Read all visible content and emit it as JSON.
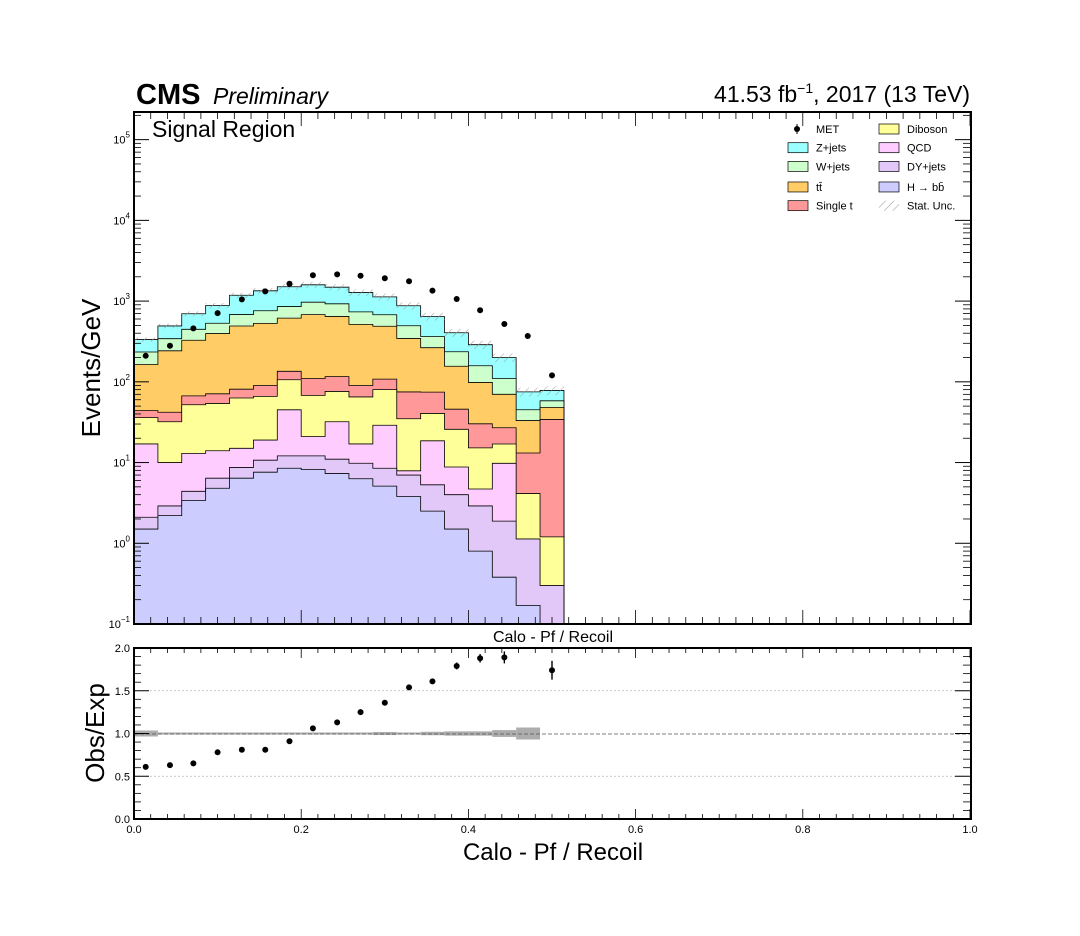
{
  "header": {
    "experiment": "CMS",
    "status": "Preliminary",
    "lumi_value": "41.53 fb",
    "lumi_exp": "−1",
    "lumi_rest": ", 2017 (13 TeV)",
    "region": "Signal Region"
  },
  "colors": {
    "data": "#000000",
    "zjets": "#9bffff",
    "wjets": "#ccffcc",
    "ttbar": "#ffcc66",
    "singlet": "#ff9999",
    "diboson": "#ffff99",
    "qcd": "#ffccff",
    "dyjets": "#e1c8f8",
    "hbb": "#ccccff",
    "unc": "#999999"
  },
  "chart_data": [
    {
      "type": "stacked-histogram",
      "panel": "main",
      "ylabel": "Events/GeV",
      "xlabel": "Calo - Pf / Recoil",
      "yscale": "log",
      "ylim": [
        0.1,
        220000
      ],
      "xlim": [
        0,
        1.0
      ],
      "y_ticks": [
        {
          "value": 0.1,
          "base": "10",
          "exp": "−1"
        },
        {
          "value": 1,
          "base": "10",
          "exp": "0"
        },
        {
          "value": 10,
          "base": "10",
          "exp": "1"
        },
        {
          "value": 100,
          "base": "10",
          "exp": "2"
        },
        {
          "value": 1000,
          "base": "10",
          "exp": "3"
        },
        {
          "value": 10000,
          "base": "10",
          "exp": "4"
        },
        {
          "value": 100000,
          "base": "10",
          "exp": "5"
        }
      ],
      "bin_edges": [
        0.0,
        0.0286,
        0.0571,
        0.0857,
        0.1143,
        0.1429,
        0.1714,
        0.2,
        0.2286,
        0.2571,
        0.2857,
        0.3143,
        0.3429,
        0.3714,
        0.4,
        0.4286,
        0.4571,
        0.4857,
        0.5143
      ],
      "stack_order": [
        "hbb",
        "dyjets",
        "qcd",
        "diboson",
        "singlet",
        "ttbar",
        "wjets",
        "zjets"
      ],
      "series": [
        {
          "key": "hbb",
          "name": "H → bb̄",
          "color_key": "hbb",
          "values": [
            1.5,
            2.2,
            3.4,
            4.8,
            6.4,
            7.6,
            8.5,
            8.2,
            7.3,
            6.3,
            5.1,
            3.8,
            2.5,
            1.5,
            0.8,
            0.38,
            0.17,
            0.1
          ]
        },
        {
          "key": "dyjets",
          "name": "DY+jets",
          "color_key": "dyjets",
          "values": [
            0.6,
            0.7,
            1.0,
            1.6,
            2.3,
            3.1,
            3.6,
            3.9,
            3.7,
            3.5,
            3.4,
            3.2,
            2.8,
            2.5,
            2.1,
            1.5,
            0.96,
            0.2
          ]
        },
        {
          "key": "qcd",
          "name": "QCD",
          "color_key": "qcd",
          "values": [
            14.9,
            7.1,
            8.6,
            7.6,
            6.3,
            8.3,
            32.9,
            8.9,
            21.0,
            7.2,
            20.5,
            0.9,
            13.3,
            4.8,
            1.8,
            7.9,
            0.0,
            0.0
          ]
        },
        {
          "key": "diboson",
          "name": "Diboson",
          "color_key": "diboson",
          "values": [
            19.0,
            22.0,
            39.0,
            40.0,
            48.0,
            47.0,
            61.0,
            47.0,
            44.0,
            48.0,
            51.0,
            27.0,
            22.0,
            17.0,
            10.5,
            7.2,
            3.0,
            0.9
          ]
        },
        {
          "key": "singlet",
          "name": "Single t",
          "color_key": "singlet",
          "values": [
            8.0,
            10.0,
            15.0,
            17.0,
            18.0,
            24.0,
            29.0,
            42.0,
            40.0,
            25.0,
            28.0,
            40.0,
            34.0,
            20.0,
            15.0,
            10.0,
            9.0,
            33.0
          ]
        },
        {
          "key": "ttbar",
          "name": "tt̄",
          "color_key": "ttbar",
          "values": [
            120,
            200,
            260,
            325,
            410,
            440,
            480,
            570,
            530,
            425,
            380,
            270,
            190,
            110,
            68,
            43,
            20,
            14
          ]
        },
        {
          "key": "wjets",
          "name": "W+jets",
          "color_key": "wjets",
          "values": [
            70,
            100,
            120,
            135,
            190,
            230,
            240,
            290,
            280,
            220,
            190,
            150,
            100,
            80,
            60,
            40,
            12,
            10
          ]
        },
        {
          "key": "zjets",
          "name": "Z+jets",
          "color_key": "zjets",
          "values": [
            100,
            150,
            250,
            350,
            500,
            580,
            650,
            620,
            560,
            540,
            450,
            380,
            280,
            170,
            130,
            90,
            30,
            20
          ]
        }
      ],
      "data": {
        "name": "MET",
        "x": [
          0.014,
          0.043,
          0.071,
          0.1,
          0.129,
          0.157,
          0.186,
          0.214,
          0.243,
          0.271,
          0.3,
          0.329,
          0.357,
          0.386,
          0.414,
          0.443,
          0.471,
          0.5
        ],
        "y": [
          210,
          280,
          460,
          710,
          1050,
          1320,
          1640,
          2090,
          2140,
          2060,
          1920,
          1760,
          1350,
          1060,
          770,
          520,
          370,
          120
        ]
      },
      "legend": [
        {
          "label": "MET",
          "style": "marker",
          "color_key": "data"
        },
        {
          "label": "Diboson",
          "style": "box",
          "color_key": "diboson"
        },
        {
          "label": "Z+jets",
          "style": "box",
          "color_key": "zjets"
        },
        {
          "label": "QCD",
          "style": "box",
          "color_key": "qcd"
        },
        {
          "label": "W+jets",
          "style": "box",
          "color_key": "wjets"
        },
        {
          "label": "DY+jets",
          "style": "box",
          "color_key": "dyjets"
        },
        {
          "label": "tt̄",
          "style": "box",
          "color_key": "ttbar"
        },
        {
          "label": "H → bb̄",
          "style": "box",
          "color_key": "hbb"
        },
        {
          "label": "Single t",
          "style": "box",
          "color_key": "singlet"
        },
        {
          "label": "Stat. Unc.",
          "style": "hatch",
          "color_key": "unc"
        }
      ],
      "legend_position": "top-right"
    },
    {
      "type": "ratio",
      "panel": "ratio",
      "ylabel": "Obs/Exp",
      "xlabel": "Calo - Pf / Recoil",
      "top_label": "Calo - Pf / Recoil",
      "ylim": [
        0.0,
        2.0
      ],
      "xlim": [
        0.0,
        1.0
      ],
      "y_ticks": [
        "0.0",
        "0.5",
        "1.0",
        "1.5",
        "2.0"
      ],
      "y_tick_values": [
        0.0,
        0.5,
        1.0,
        1.5,
        2.0
      ],
      "x_ticks": [
        "0.0",
        "0.2",
        "0.4",
        "0.6",
        "0.8",
        "1.0"
      ],
      "x_tick_values": [
        0.0,
        0.2,
        0.4,
        0.6,
        0.8,
        1.0
      ],
      "reference_line": 1.0,
      "grid": true,
      "points": {
        "x": [
          0.014,
          0.043,
          0.071,
          0.1,
          0.129,
          0.157,
          0.186,
          0.214,
          0.243,
          0.271,
          0.3,
          0.329,
          0.357,
          0.386,
          0.414,
          0.443,
          0.5
        ],
        "y": [
          0.61,
          0.63,
          0.65,
          0.78,
          0.81,
          0.81,
          0.91,
          1.06,
          1.13,
          1.25,
          1.36,
          1.54,
          1.61,
          1.79,
          1.88,
          1.89,
          1.74
        ],
        "err": [
          0.03,
          0.03,
          0.02,
          0.02,
          0.02,
          0.02,
          0.02,
          0.02,
          0.02,
          0.02,
          0.02,
          0.03,
          0.03,
          0.04,
          0.05,
          0.07,
          0.11
        ]
      },
      "unc_band": {
        "x0": [
          0.0,
          0.0286,
          0.2857,
          0.3143,
          0.3429,
          0.3714,
          0.4286,
          0.4571
        ],
        "x1": [
          0.0286,
          0.2857,
          0.3143,
          0.3429,
          0.3714,
          0.4286,
          0.4571,
          0.4857
        ],
        "half": [
          0.035,
          0.012,
          0.018,
          0.012,
          0.02,
          0.025,
          0.04,
          0.07
        ]
      }
    }
  ]
}
